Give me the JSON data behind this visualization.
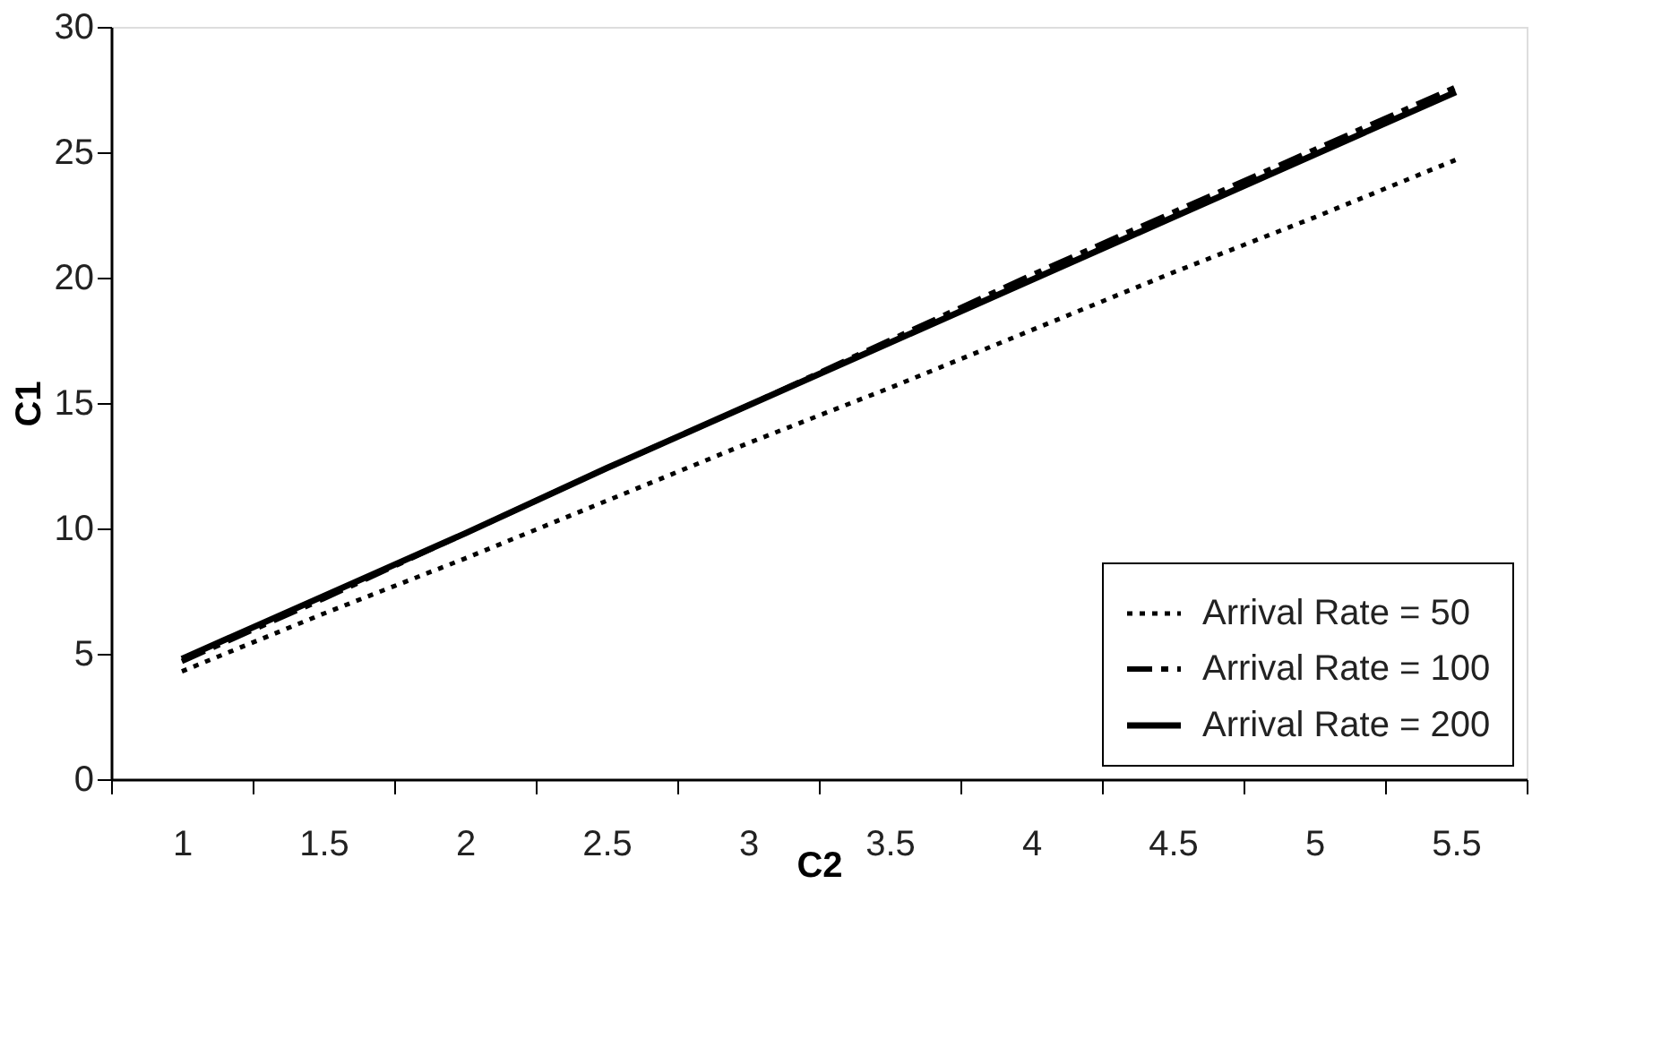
{
  "chart_data": {
    "type": "line",
    "xlabel": "C2",
    "ylabel": "C1",
    "categories": [
      "1",
      "1.5",
      "2",
      "2.5",
      "3",
      "3.5",
      "4",
      "4.5",
      "5",
      "5.5"
    ],
    "series": [
      {
        "name": "Arrival Rate = 50",
        "color": "#000000",
        "line_style": "dotted",
        "values": [
          4.3,
          6.6,
          8.8,
          11.1,
          13.4,
          15.6,
          17.9,
          20.2,
          22.4,
          24.7
        ]
      },
      {
        "name": "Arrival Rate = 100",
        "color": "#000000",
        "line_style": "dashed",
        "values": [
          4.7,
          7.2,
          9.8,
          12.4,
          14.9,
          17.5,
          20.1,
          22.6,
          25.1,
          27.6
        ]
      },
      {
        "name": "Arrival Rate = 200",
        "color": "#000000",
        "line_style": "solid",
        "values": [
          4.8,
          7.3,
          9.8,
          12.4,
          14.9,
          17.4,
          19.9,
          22.4,
          24.9,
          27.4
        ]
      }
    ],
    "ylim": [
      0,
      30
    ],
    "yticks": [
      0,
      5,
      10,
      15,
      20,
      25,
      30
    ],
    "grid": false,
    "legend": "bottom right",
    "marker": "none"
  }
}
